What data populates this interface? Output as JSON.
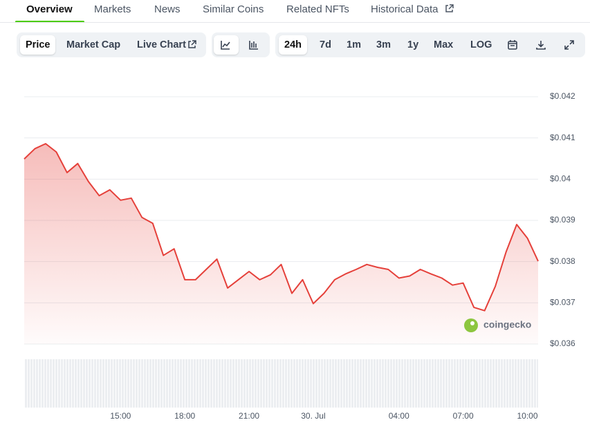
{
  "tabs": [
    "Overview",
    "Markets",
    "News",
    "Similar Coins",
    "Related NFTs",
    "Historical Data"
  ],
  "toolbar": {
    "views": [
      "Price",
      "Market Cap",
      "Live Chart"
    ],
    "ranges": [
      "24h",
      "7d",
      "1m",
      "3m",
      "1y",
      "Max",
      "LOG"
    ]
  },
  "chart_data": {
    "type": "line",
    "categories": [
      null,
      null,
      null,
      null,
      null,
      null,
      null,
      null,
      null,
      "15:00",
      null,
      null,
      null,
      null,
      null,
      "18:00",
      null,
      null,
      null,
      null,
      null,
      "21:00",
      null,
      null,
      null,
      null,
      null,
      "30. Jul",
      null,
      null,
      null,
      null,
      null,
      null,
      null,
      "04:00",
      null,
      null,
      null,
      null,
      null,
      "07:00",
      null,
      null,
      null,
      null,
      null,
      "10:00",
      null
    ],
    "series": [
      {
        "color": "#e5403a",
        "values": [
          0.04049,
          0.04074,
          0.04086,
          0.04066,
          0.04016,
          0.04038,
          0.03994,
          0.0396,
          0.03974,
          0.03949,
          0.03954,
          0.03907,
          0.03893,
          0.03815,
          0.03831,
          0.03756,
          0.03756,
          0.03781,
          0.03806,
          0.03736,
          0.03756,
          0.03776,
          0.03756,
          0.03768,
          0.03793,
          0.03723,
          0.03756,
          0.03698,
          0.03723,
          0.03756,
          0.0377,
          0.03781,
          0.03793,
          0.03786,
          0.03781,
          0.0376,
          0.03765,
          0.03781,
          0.0377,
          0.0376,
          0.03743,
          0.03748,
          0.03689,
          0.03681,
          0.0374,
          0.03823,
          0.0389,
          0.03857,
          0.03801
        ]
      }
    ],
    "ylim": [
      0.036,
      0.042
    ],
    "yticks": [
      {
        "value": 0.036,
        "label": "$0.036"
      },
      {
        "value": 0.037,
        "label": "$0.037"
      },
      {
        "value": 0.038,
        "label": "$0.038"
      },
      {
        "value": 0.039,
        "label": "$0.039"
      },
      {
        "value": 0.04,
        "label": "$0.04"
      },
      {
        "value": 0.041,
        "label": "$0.041"
      },
      {
        "value": 0.042,
        "label": "$0.042"
      }
    ],
    "grid": true,
    "watermark": "coingecko"
  }
}
